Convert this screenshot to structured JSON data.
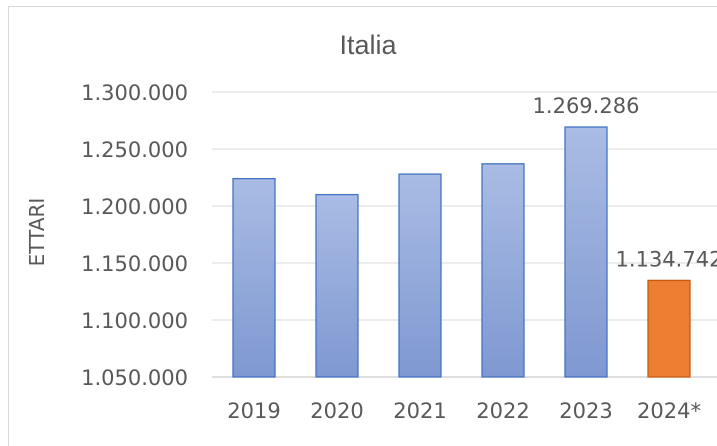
{
  "chart_data": {
    "type": "bar",
    "title": "Italia",
    "xlabel": "",
    "ylabel": "ETTARI",
    "categories": [
      "2019",
      "2020",
      "2021",
      "2022",
      "2023",
      "2024*"
    ],
    "values": [
      1224000,
      1210000,
      1228000,
      1237000,
      1269286,
      1134742
    ],
    "ylim": [
      1050000,
      1300000
    ],
    "yticks": [
      1050000,
      1100000,
      1150000,
      1200000,
      1250000,
      1300000
    ],
    "ytick_labels": [
      "1.050.000",
      "1.100.000",
      "1.150.000",
      "1.200.000",
      "1.250.000",
      "1.300.000"
    ],
    "data_labels": [
      {
        "index": 4,
        "text": "1.269.286"
      },
      {
        "index": 5,
        "text": "1.134.742"
      }
    ],
    "bar_colors": [
      "#8ea5d6",
      "#8ea5d6",
      "#8ea5d6",
      "#8ea5d6",
      "#8ea5d6",
      "#ed7d31"
    ],
    "gridlines": true,
    "legend": "none"
  }
}
